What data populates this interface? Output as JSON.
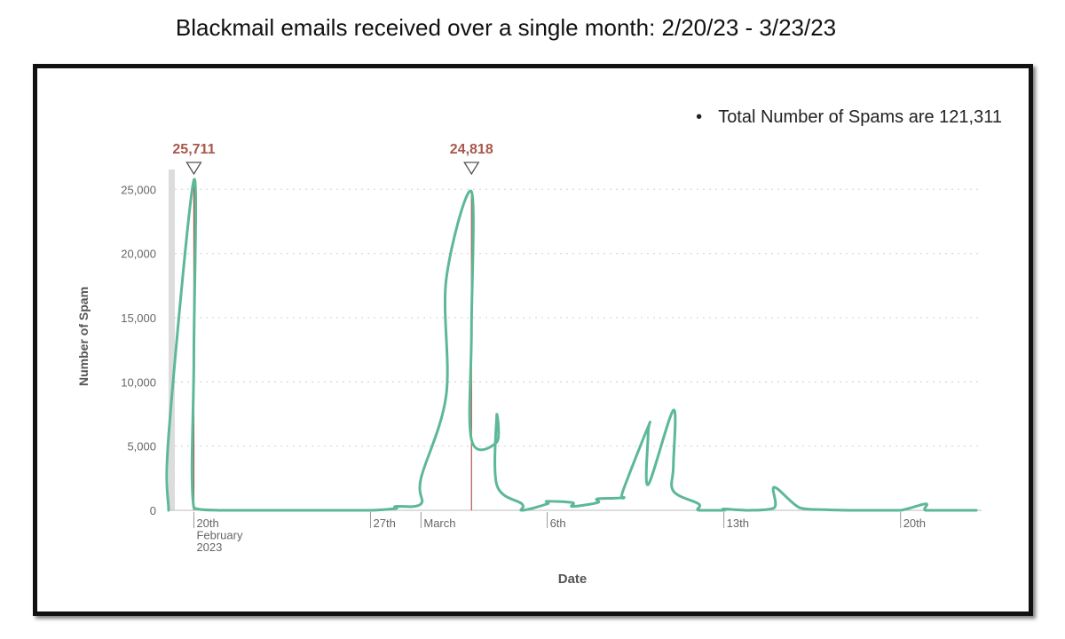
{
  "title": "Blackmail emails received over a single month: 2/20/23 - 3/23/23",
  "colors": {
    "line": "#5cb897",
    "peak": "#a8574a",
    "grid": "#d9d9d9",
    "axis": "#666666",
    "shade": "#dcdcdc"
  },
  "chart_data": {
    "type": "line",
    "title": "Blackmail emails received over a single month: 2/20/23 - 3/23/23",
    "xlabel": "Date",
    "ylabel": "Number of Spam",
    "note": "Total Number of Spams are 121,311",
    "grid": true,
    "legend": "none",
    "ylim": [
      0,
      25711
    ],
    "xlim": [
      "2023-02-19",
      "2023-03-23"
    ],
    "yticks": [
      0,
      5000,
      10000,
      15000,
      20000,
      25000
    ],
    "ytick_labels": [
      "0",
      "5,000",
      "10,000",
      "15,000",
      "20,000",
      "25,000"
    ],
    "xticks": [
      {
        "date": "2023-02-20",
        "lines": [
          "20th",
          "February",
          "2023"
        ]
      },
      {
        "date": "2023-02-27",
        "lines": [
          "27th"
        ]
      },
      {
        "date": "2023-03-01",
        "lines": [
          "March"
        ]
      },
      {
        "date": "2023-03-06",
        "lines": [
          "6th"
        ]
      },
      {
        "date": "2023-03-13",
        "lines": [
          "13th"
        ]
      },
      {
        "date": "2023-03-20",
        "lines": [
          "20th"
        ]
      }
    ],
    "peaks": [
      {
        "date": "2023-02-20",
        "value": 25711,
        "label": "25,711"
      },
      {
        "date": "2023-03-03",
        "value": 24818,
        "label": "24,818"
      }
    ],
    "series": [
      {
        "x": [
          "2023-02-19",
          "2023-02-19",
          "2023-02-20",
          "2023-02-20",
          "2023-02-20",
          "2023-02-21",
          "2023-02-22",
          "2023-02-23",
          "2023-02-24",
          "2023-02-25",
          "2023-02-26",
          "2023-02-27",
          "2023-02-28",
          "2023-02-28",
          "2023-03-01",
          "2023-03-01",
          "2023-03-02",
          "2023-03-02",
          "2023-03-03",
          "2023-03-03",
          "2023-03-03",
          "2023-03-04",
          "2023-03-04",
          "2023-03-04",
          "2023-03-05",
          "2023-03-05",
          "2023-03-06",
          "2023-03-06",
          "2023-03-07",
          "2023-03-07",
          "2023-03-08",
          "2023-03-08",
          "2023-03-09",
          "2023-03-09",
          "2023-03-10",
          "2023-03-10",
          "2023-03-10",
          "2023-03-11",
          "2023-03-11",
          "2023-03-11",
          "2023-03-12",
          "2023-03-12",
          "2023-03-13",
          "2023-03-13",
          "2023-03-14",
          "2023-03-15",
          "2023-03-15",
          "2023-03-16",
          "2023-03-17",
          "2023-03-18",
          "2023-03-19",
          "2023-03-20",
          "2023-03-21",
          "2023-03-21",
          "2023-03-22",
          "2023-03-23"
        ],
        "values": [
          0,
          5800,
          25711,
          12000,
          200,
          0,
          0,
          0,
          0,
          0,
          0,
          0,
          150,
          300,
          500,
          2500,
          9000,
          18000,
          24818,
          14000,
          5500,
          5300,
          7400,
          2000,
          500,
          0,
          500,
          700,
          600,
          300,
          600,
          900,
          1000,
          1500,
          6500,
          6000,
          2000,
          7800,
          3500,
          1500,
          500,
          0,
          0,
          100,
          0,
          200,
          1800,
          200,
          50,
          0,
          0,
          0,
          500,
          0,
          0,
          0
        ]
      }
    ]
  }
}
